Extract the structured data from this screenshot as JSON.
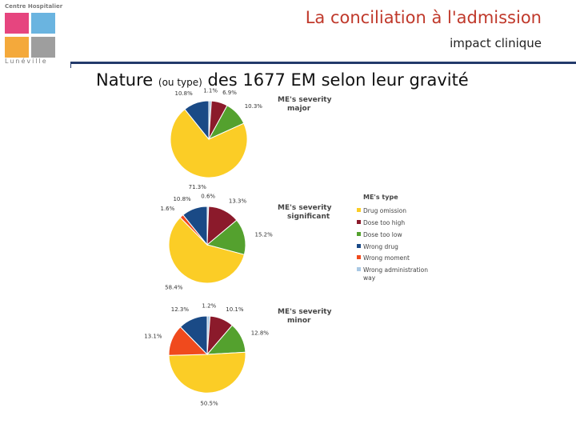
{
  "logo": {
    "name": "Centre Hospitalier",
    "town": "Lunéville"
  },
  "header": {
    "title": "La conciliation à l'admission",
    "subtitle": "impact clinique",
    "heading_main": "Nature",
    "heading_small": "(ou type)",
    "heading_rest": "des 1677 EM selon leur gravité"
  },
  "legend": {
    "title": "ME's type",
    "position": "right"
  },
  "chart_data": [
    {
      "type": "pie",
      "title": "ME's severity major",
      "categories": [
        "Drug omission",
        "Dose too high",
        "Dose too low",
        "Wrong drug",
        "Wrong moment",
        "Wrong administration way"
      ],
      "values": [
        71.3,
        6.9,
        10.3,
        10.8,
        0,
        1.1
      ],
      "labels": [
        "71.3%",
        "6.9%",
        "10.3%",
        "10.8%",
        "",
        "1.1%"
      ],
      "colors": [
        "#fbcd26",
        "#8b1a2b",
        "#54a12e",
        "#1a4a86",
        "#f04a1d",
        "#a9c8e4"
      ]
    },
    {
      "type": "pie",
      "title": "ME's severity significant",
      "categories": [
        "Drug omission",
        "Dose too high",
        "Dose too low",
        "Wrong drug",
        "Wrong moment",
        "Wrong administration way"
      ],
      "values": [
        58.4,
        13.3,
        15.2,
        10.8,
        1.6,
        0.6
      ],
      "labels": [
        "58.4%",
        "13.3%",
        "15.2%",
        "10.8%",
        "1.6%",
        "0.6%"
      ],
      "colors": [
        "#fbcd26",
        "#8b1a2b",
        "#54a12e",
        "#1a4a86",
        "#f04a1d",
        "#a9c8e4"
      ]
    },
    {
      "type": "pie",
      "title": "ME's severity minor",
      "categories": [
        "Drug omission",
        "Dose too high",
        "Dose too low",
        "Wrong drug",
        "Wrong moment",
        "Wrong administration way"
      ],
      "values": [
        50.5,
        10.1,
        12.8,
        12.3,
        13.1,
        1.2
      ],
      "labels": [
        "50.5%",
        "10.1%",
        "12.8%",
        "12.3%",
        "13.1%",
        "1.2%"
      ],
      "colors": [
        "#fbcd26",
        "#8b1a2b",
        "#54a12e",
        "#1a4a86",
        "#f04a1d",
        "#a9c8e4"
      ]
    }
  ]
}
